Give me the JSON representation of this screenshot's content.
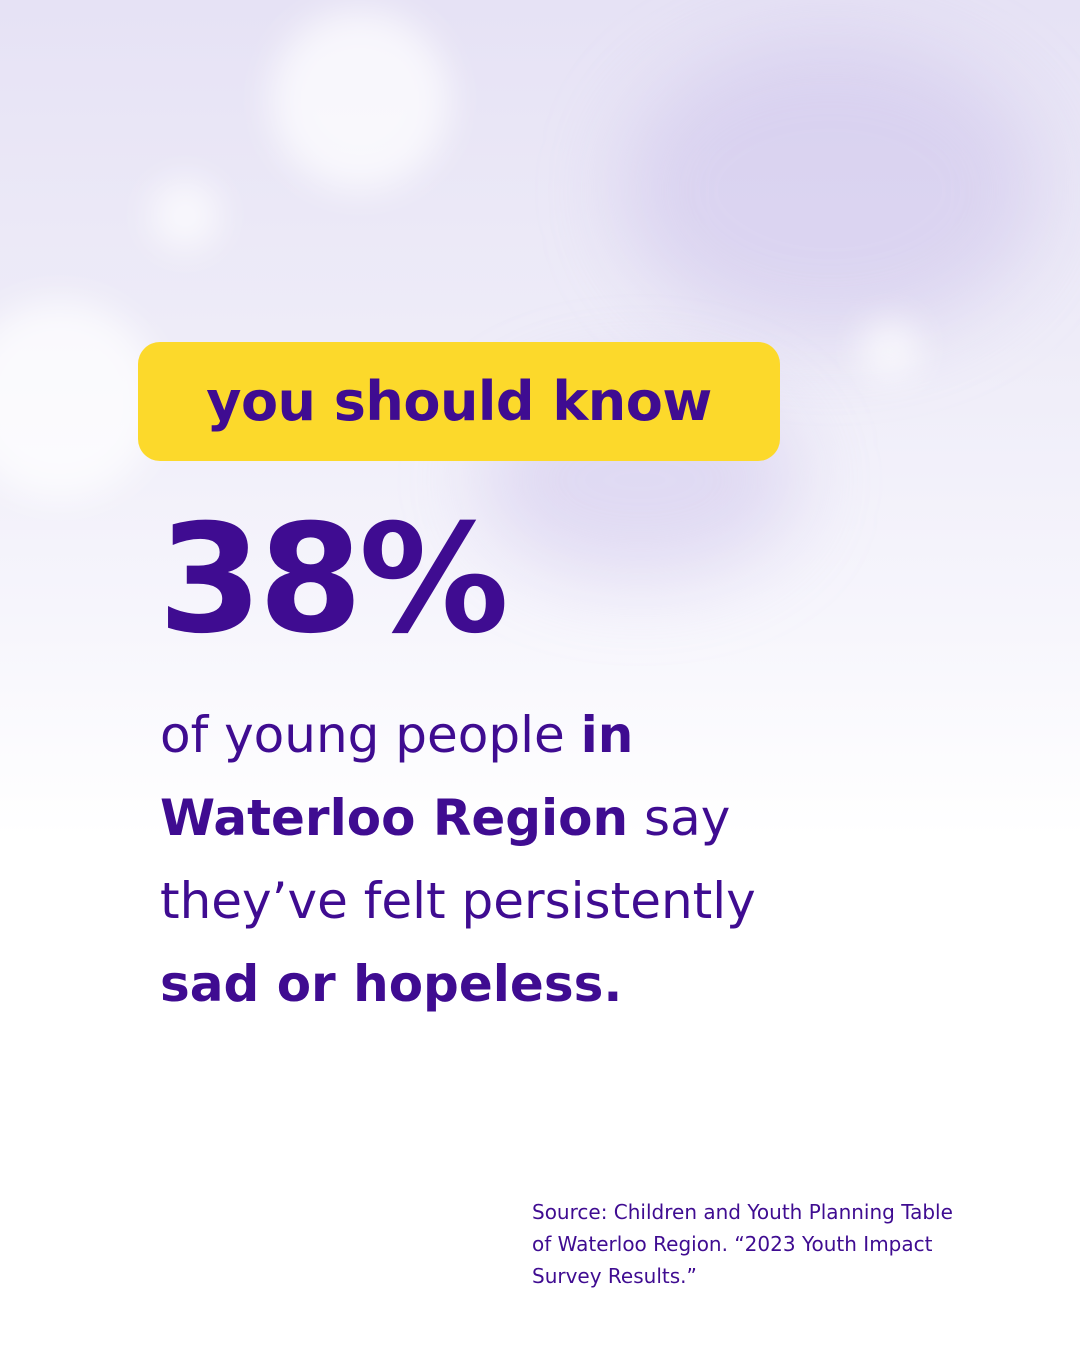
{
  "badge": {
    "text": "you should know"
  },
  "stat": {
    "text": "38%"
  },
  "body": {
    "lines": [
      [
        {
          "text": "of young people ",
          "bold": false
        },
        {
          "text": "in",
          "bold": true
        }
      ],
      [
        {
          "text": "Waterloo Region",
          "bold": true
        },
        {
          "text": " say",
          "bold": false
        }
      ],
      [
        {
          "text": "they’ve felt persistently",
          "bold": false
        }
      ],
      [
        {
          "text": "sad or hopeless.",
          "bold": true
        }
      ]
    ]
  },
  "source": {
    "lines": [
      "Source: Children and Youth Planning Table",
      "of Waterloo Region. “2023 Youth Impact",
      "Survey Results.”"
    ]
  }
}
